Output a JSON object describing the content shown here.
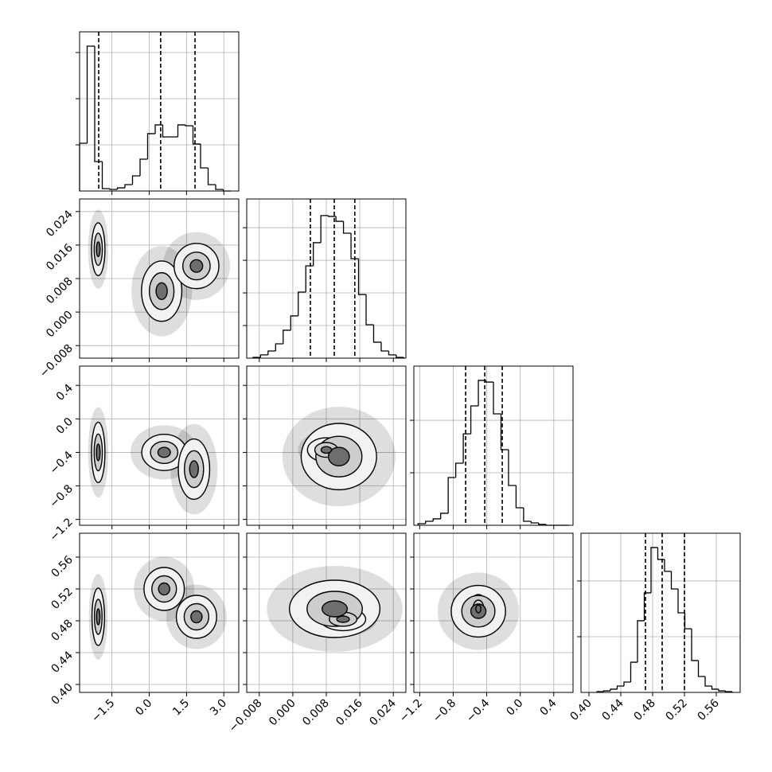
{
  "chart_data": {
    "type": "corner",
    "grid": true,
    "color": "#000000",
    "params": [
      {
        "xlim": [
          -2.8,
          3.6
        ],
        "xticks": [
          {
            "value": -1.5,
            "label": "−1.5"
          },
          {
            "value": 0.0,
            "label": "0.0"
          },
          1.5,
          {
            "value": 3.0,
            "label": "3.0"
          }
        ]
      },
      {
        "xlim": [
          -0.011,
          0.027
        ],
        "xticks": [
          {
            "value": -0.008,
            "label": "−0.008"
          },
          {
            "value": 0.0,
            "label": "0.000"
          },
          0.008,
          0.016,
          0.024
        ]
      },
      {
        "xlim": [
          -1.27,
          0.63
        ],
        "xticks": [
          {
            "value": -1.2,
            "label": "−1.2"
          },
          {
            "value": -0.8,
            "label": "−0.8"
          },
          {
            "value": -0.4,
            "label": "−0.4"
          },
          {
            "value": 0.0,
            "label": "0.0"
          },
          0.4
        ]
      },
      {
        "xlim": [
          0.39,
          0.59
        ],
        "xticks": [
          {
            "value": 0.4,
            "label": "0.40"
          },
          0.44,
          0.48,
          0.52,
          0.56
        ]
      }
    ],
    "histograms": [
      {
        "bins": [
          -2.8,
          -2.496,
          -2.192,
          -1.888,
          -1.584,
          -1.28,
          -0.976,
          -0.672,
          -0.368,
          -0.064,
          0.24,
          0.544,
          0.848,
          1.152,
          1.456,
          1.76,
          2.064,
          2.368,
          2.672,
          2.976,
          3.28
        ],
        "counts": [
          517,
          1569,
          319,
          26,
          17,
          34,
          69,
          164,
          345,
          621,
          716,
          586,
          586,
          716,
          707,
          509,
          250,
          69,
          17,
          0
        ],
        "quantiles": [
          -2.03,
          0.46,
          1.84
        ],
        "ylim": [
          0,
          1724
        ],
        "yticks": [
          500,
          1000,
          1500
        ]
      },
      {
        "bins": [
          -0.0095,
          -0.0077,
          -0.0059,
          -0.0041,
          -0.0023,
          -0.0005,
          0.0013,
          0.0031,
          0.0049,
          0.0067,
          0.0085,
          0.0103,
          0.0121,
          0.0139,
          0.0157,
          0.0175,
          0.0193,
          0.0211,
          0.0229,
          0.0247,
          0.0265
        ],
        "counts": [
          5,
          20,
          44,
          88,
          171,
          259,
          405,
          566,
          708,
          874,
          869,
          839,
          766,
          610,
          390,
          205,
          98,
          44,
          20,
          5
        ],
        "quantiles": [
          0.0042,
          0.0099,
          0.0148
        ],
        "ylim": [
          0,
          976
        ],
        "yticks": [
          200,
          400,
          600,
          800
        ]
      },
      {
        "bins": [
          -1.22,
          -1.13,
          -1.04,
          -0.95,
          -0.86,
          -0.77,
          -0.68,
          -0.59,
          -0.5,
          -0.41,
          -0.32,
          -0.23,
          -0.14,
          -0.05,
          0.04,
          0.13,
          0.22,
          0.31,
          0.4,
          0.49,
          0.58
        ],
        "counts": [
          15,
          38,
          61,
          114,
          455,
          591,
          871,
          1137,
          1380,
          1364,
          1061,
          720,
          379,
          167,
          38,
          23,
          8,
          0,
          0,
          0
        ],
        "quantiles": [
          -0.652,
          -0.424,
          -0.215
        ],
        "ylim": [
          0,
          1516
        ],
        "yticks": [
          500,
          1000
        ]
      },
      {
        "bins": [
          0.41,
          0.4185,
          0.427,
          0.4355,
          0.444,
          0.4525,
          0.461,
          0.4695,
          0.478,
          0.4865,
          0.495,
          0.5035,
          0.512,
          0.5205,
          0.529,
          0.5375,
          0.546,
          0.5545,
          0.563,
          0.5715,
          0.58
        ],
        "counts": [
          7,
          14,
          29,
          57,
          93,
          271,
          643,
          893,
          1300,
          1193,
          1086,
          928,
          714,
          571,
          286,
          143,
          57,
          29,
          14,
          7
        ],
        "quantiles": [
          0.471,
          0.492,
          0.52
        ],
        "ylim": [
          0,
          1428
        ],
        "yticks": [
          500,
          1000
        ]
      }
    ],
    "panels": [
      [
        {
          "blobs": [
            {
              "x": -2.05,
              "y": 0.015,
              "sx": 0.15,
              "sy": 0.0035
            },
            {
              "x": 0.5,
              "y": 0.005,
              "sx": 0.45,
              "sy": 0.004
            },
            {
              "x": 1.9,
              "y": 0.011,
              "sx": 0.5,
              "sy": 0.003
            }
          ]
        }
      ],
      [
        {
          "blobs": [
            {
              "x": -2.05,
              "y": -0.4,
              "sx": 0.15,
              "sy": 0.2
            },
            {
              "x": 0.6,
              "y": -0.4,
              "sx": 0.5,
              "sy": 0.12
            },
            {
              "x": 1.8,
              "y": -0.6,
              "sx": 0.35,
              "sy": 0.2
            }
          ]
        },
        {
          "blobs": [
            {
              "x": 0.011,
              "y": -0.45,
              "sx": 0.005,
              "sy": 0.22
            },
            {
              "x": 0.008,
              "y": -0.37,
              "sx": 0.0025,
              "sy": 0.08
            }
          ]
        }
      ],
      [
        {
          "blobs": [
            {
              "x": -2.05,
              "y": 0.485,
              "sx": 0.14,
              "sy": 0.02
            },
            {
              "x": 0.6,
              "y": 0.52,
              "sx": 0.45,
              "sy": 0.015
            },
            {
              "x": 1.9,
              "y": 0.485,
              "sx": 0.45,
              "sy": 0.015
            }
          ]
        },
        {
          "blobs": [
            {
              "x": 0.01,
              "y": 0.495,
              "sx": 0.006,
              "sy": 0.02
            },
            {
              "x": 0.012,
              "y": 0.482,
              "sx": 0.003,
              "sy": 0.008
            }
          ]
        },
        {
          "blobs": [
            {
              "x": -0.5,
              "y": 0.492,
              "sx": 0.18,
              "sy": 0.018
            },
            {
              "x": -0.5,
              "y": 0.495,
              "sx": 0.06,
              "sy": 0.01
            }
          ]
        }
      ]
    ]
  }
}
